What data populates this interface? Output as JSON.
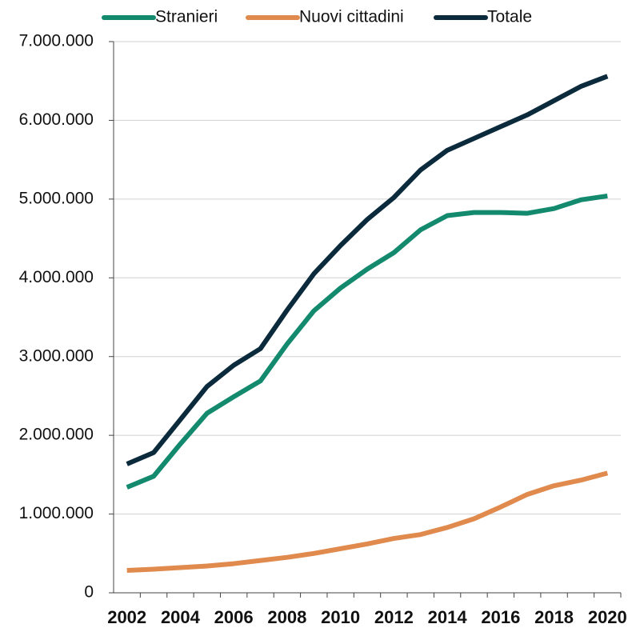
{
  "chart_data": {
    "type": "line",
    "categories": [
      "2002",
      null,
      "2004",
      null,
      "2006",
      null,
      "2008",
      null,
      "2010",
      null,
      "2012",
      null,
      "2014",
      null,
      "2016",
      null,
      "2018",
      null,
      "2020"
    ],
    "series": [
      {
        "name": "Stranieri",
        "color": "#138a6e",
        "values": [
          1340000,
          1480000,
          1890000,
          2280000,
          2490000,
          2690000,
          3160000,
          3580000,
          3870000,
          4110000,
          4320000,
          4610000,
          4790000,
          4830000,
          4830000,
          4820000,
          4880000,
          4990000,
          5040000
        ]
      },
      {
        "name": "Nuovi cittadini",
        "color": "#e08a4e",
        "values": [
          285000,
          300000,
          320000,
          340000,
          370000,
          410000,
          450000,
          500000,
          560000,
          620000,
          690000,
          740000,
          830000,
          940000,
          1090000,
          1250000,
          1360000,
          1430000,
          1520000
        ]
      },
      {
        "name": "Totale",
        "color": "#0b2a3c",
        "values": [
          1636000,
          1780000,
          2200000,
          2620000,
          2890000,
          3100000,
          3590000,
          4050000,
          4410000,
          4740000,
          5020000,
          5370000,
          5620000,
          5770000,
          5920000,
          6070000,
          6250000,
          6430000,
          6560000
        ]
      }
    ],
    "ylim": [
      0,
      7000000
    ],
    "yticks": [
      0,
      {
        "value": 1000000,
        "label": "1.000.000"
      },
      {
        "value": 2000000,
        "label": "2.000.000"
      },
      {
        "value": 3000000,
        "label": "3.000.000"
      },
      {
        "value": 4000000,
        "label": "4.000.000"
      },
      {
        "value": 5000000,
        "label": "5.000.000"
      },
      {
        "value": 6000000,
        "label": "6.000.000"
      },
      {
        "value": 7000000,
        "label": "7.000.000"
      }
    ],
    "grid": true,
    "legend": "top"
  }
}
